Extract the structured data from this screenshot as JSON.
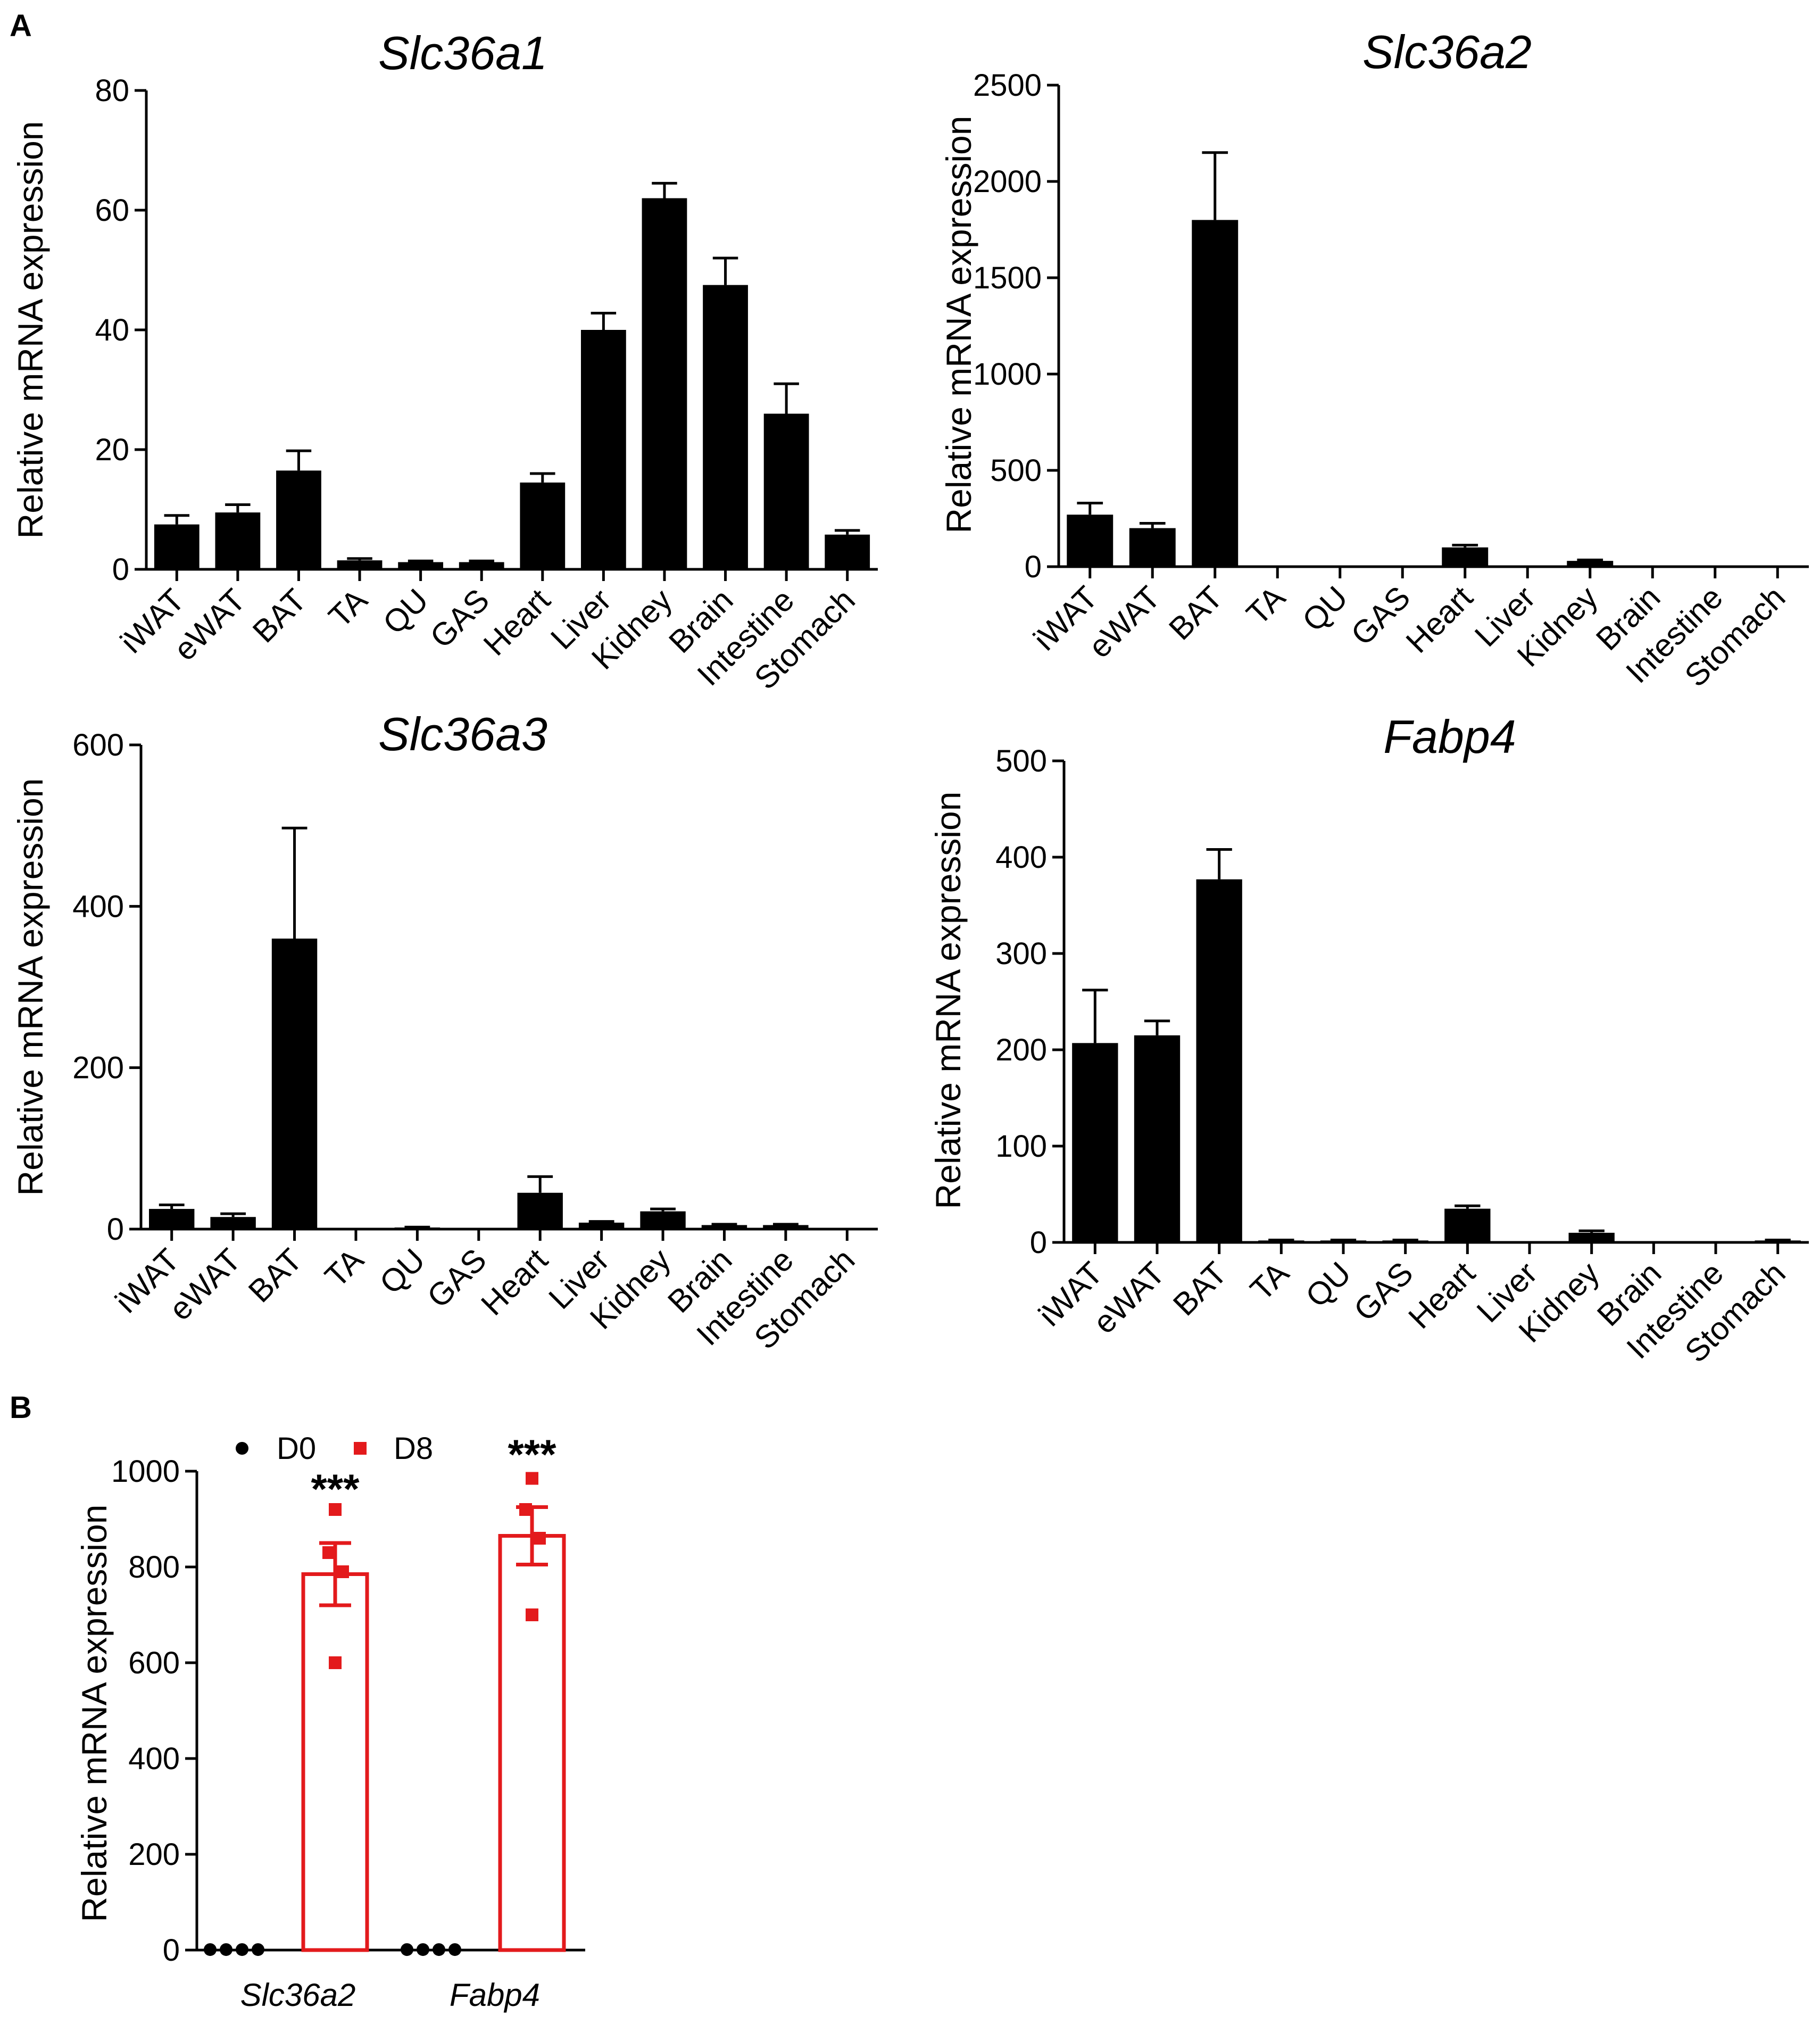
{
  "panels": {
    "a": "A",
    "b": "B"
  },
  "chart_data": [
    {
      "id": "slc36a1",
      "type": "bar",
      "title": "Slc36a1",
      "ylabel": "Relative mRNA expression",
      "categories": [
        "iWAT",
        "eWAT",
        "BAT",
        "TA",
        "QU",
        "GAS",
        "Heart",
        "Liver",
        "Kidney",
        "Brain",
        "Intestine",
        "Stomach"
      ],
      "values": [
        7.5,
        9.5,
        16.5,
        1.5,
        1.2,
        1.2,
        14.5,
        40,
        62,
        47.5,
        26,
        5.8
      ],
      "errors": [
        1.5,
        1.3,
        3.3,
        0.3,
        0.2,
        0.2,
        1.5,
        2.8,
        2.5,
        4.5,
        5,
        0.7
      ],
      "ylim": [
        0,
        80
      ],
      "yticks": [
        0,
        20,
        40,
        60,
        80
      ],
      "color": "#000000"
    },
    {
      "id": "slc36a2",
      "type": "bar",
      "title": "Slc36a2",
      "ylabel": "Relative mRNA expression",
      "categories": [
        "iWAT",
        "eWAT",
        "BAT",
        "TA",
        "QU",
        "GAS",
        "Heart",
        "Liver",
        "Kidney",
        "Brain",
        "Intestine",
        "Stomach"
      ],
      "values": [
        270,
        200,
        1800,
        0,
        0,
        0,
        100,
        0,
        30,
        0,
        0,
        0
      ],
      "errors": [
        60,
        25,
        350,
        0,
        0,
        0,
        12,
        0,
        5,
        0,
        0,
        0
      ],
      "ylim": [
        0,
        2500
      ],
      "yticks": [
        0,
        500,
        1000,
        1500,
        2000,
        2500
      ],
      "color": "#000000"
    },
    {
      "id": "slc36a3",
      "type": "bar",
      "title": "Slc36a3",
      "ylabel": "Relative mRNA expression",
      "categories": [
        "iWAT",
        "eWAT",
        "BAT",
        "TA",
        "QU",
        "GAS",
        "Heart",
        "Liver",
        "Kidney",
        "Brain",
        "Intestine",
        "Stomach"
      ],
      "values": [
        25,
        15,
        360,
        0,
        2,
        0,
        45,
        8,
        22,
        5,
        5,
        0
      ],
      "errors": [
        5,
        4,
        137,
        0,
        0.5,
        0,
        20,
        1.5,
        3,
        1,
        1,
        0
      ],
      "ylim": [
        0,
        600
      ],
      "yticks": [
        0,
        200,
        400,
        600
      ],
      "color": "#000000"
    },
    {
      "id": "fabp4",
      "type": "bar",
      "title": "Fabp4",
      "ylabel": "Relative mRNA expression",
      "categories": [
        "iWAT",
        "eWAT",
        "BAT",
        "TA",
        "QU",
        "GAS",
        "Heart",
        "Liver",
        "Kidney",
        "Brain",
        "Intestine",
        "Stomach"
      ],
      "values": [
        207,
        215,
        377,
        2,
        2,
        2,
        35,
        0,
        10,
        0,
        0,
        2
      ],
      "errors": [
        55,
        15,
        31,
        0.5,
        0.5,
        0.5,
        3,
        0,
        2,
        0,
        0,
        0.5
      ],
      "ylim": [
        0,
        500
      ],
      "yticks": [
        0,
        100,
        200,
        300,
        400,
        500
      ],
      "color": "#000000"
    },
    {
      "id": "panel-b",
      "type": "bar",
      "title": "",
      "ylabel": "Relative mRNA expression",
      "categories": [
        "Slc36a2",
        "Fabp4"
      ],
      "ylim": [
        0,
        1000
      ],
      "yticks": [
        0,
        200,
        400,
        600,
        800,
        1000
      ],
      "series": [
        {
          "name": "D0",
          "color": "#000000",
          "values": [
            1,
            1
          ],
          "errors": [
            0,
            0
          ],
          "points": [
            [
              1,
              1,
              1,
              1
            ],
            [
              1,
              1,
              1,
              1
            ]
          ]
        },
        {
          "name": "D8",
          "color": "#e31a1c",
          "values": [
            785,
            865
          ],
          "errors": [
            65,
            60
          ],
          "points": [
            [
              920,
              830,
              790,
              600
            ],
            [
              985,
              920,
              860,
              700
            ]
          ]
        }
      ],
      "significance": [
        "***",
        "***"
      ]
    }
  ]
}
